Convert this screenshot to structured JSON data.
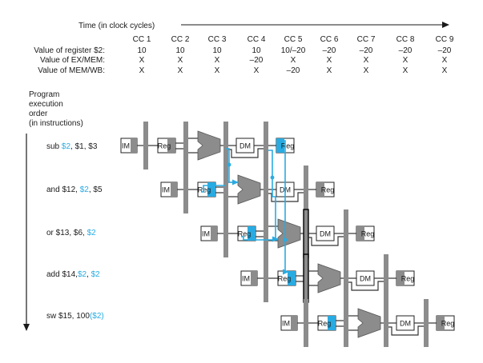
{
  "time_axis": {
    "label": "Time (in clock cycles)",
    "cycles": [
      "CC 1",
      "CC 2",
      "CC 3",
      "CC 4",
      "CC 5",
      "CC 6",
      "CC 7",
      "CC 8",
      "CC 9"
    ]
  },
  "value_table": {
    "rows": [
      {
        "label": "Value of register $2:",
        "values": [
          "10",
          "10",
          "10",
          "10",
          "10/–20",
          "–20",
          "–20",
          "–20",
          "–20"
        ]
      },
      {
        "label": "Value of EX/MEM:",
        "values": [
          "X",
          "X",
          "X",
          "–20",
          "X",
          "X",
          "X",
          "X",
          "X"
        ]
      },
      {
        "label": "Value of MEM/WB:",
        "values": [
          "X",
          "X",
          "X",
          "X",
          "–20",
          "X",
          "X",
          "X",
          "X"
        ]
      }
    ]
  },
  "order_label": [
    "Program",
    "execution",
    "order",
    "(in instructions)"
  ],
  "stage_labels": {
    "im": "IM",
    "reg": "Reg",
    "dm": "DM"
  },
  "instructions": [
    {
      "parts": [
        {
          "t": "sub "
        },
        {
          "t": "$2",
          "hl": true
        },
        {
          "t": ", $1, $3"
        }
      ]
    },
    {
      "parts": [
        {
          "t": "and $12, "
        },
        {
          "t": "$2",
          "hl": true
        },
        {
          "t": ", $5"
        }
      ]
    },
    {
      "parts": [
        {
          "t": "or $13, $6, "
        },
        {
          "t": "$2",
          "hl": true
        }
      ]
    },
    {
      "parts": [
        {
          "t": "add $14,"
        },
        {
          "t": "$2",
          "hl": true
        },
        {
          "t": ", "
        },
        {
          "t": "$2",
          "hl": true
        }
      ]
    },
    {
      "parts": [
        {
          "t": "sw $15, 100"
        },
        {
          "t": "($2)",
          "hl": true
        }
      ]
    }
  ],
  "colors": {
    "accent": "#29abe2",
    "pipeline_bar": "#8c8c8c",
    "alu": "#8c8c8c",
    "text": "#1a1a1a",
    "box_border": "#222222"
  }
}
